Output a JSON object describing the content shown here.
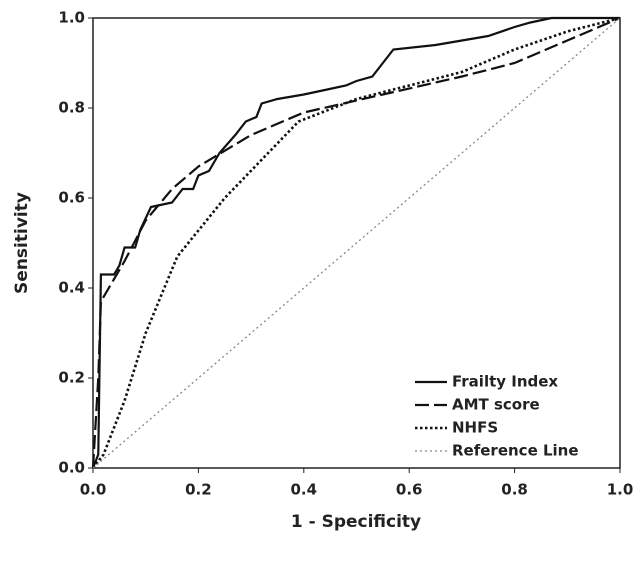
{
  "chart_data": {
    "type": "line",
    "xlabel": "1 - Specificity",
    "ylabel": "Sensitivity",
    "xlim": [
      0,
      1
    ],
    "ylim": [
      0,
      1
    ],
    "xticks": [
      {
        "value": 0,
        "label": "0.0"
      },
      0.2,
      0.4,
      0.6,
      0.8,
      {
        "value": 1,
        "label": "1.0"
      }
    ],
    "yticks": [
      {
        "value": 0,
        "label": "0.0"
      },
      0.2,
      0.4,
      0.6,
      0.8,
      {
        "value": 1,
        "label": "1.0"
      }
    ],
    "legend": "lower right",
    "series": [
      {
        "name": "Frailty Index",
        "color": "#111111",
        "style": "solid",
        "x": [
          0,
          0.01,
          0.015,
          0.04,
          0.05,
          0.06,
          0.08,
          0.09,
          0.11,
          0.15,
          0.17,
          0.19,
          0.2,
          0.22,
          0.24,
          0.27,
          0.29,
          0.31,
          0.32,
          0.35,
          0.4,
          0.44,
          0.48,
          0.5,
          0.53,
          0.55,
          0.57,
          0.65,
          0.75,
          0.8,
          0.83,
          0.87,
          1
        ],
        "values": [
          0,
          0.03,
          0.43,
          0.43,
          0.45,
          0.49,
          0.49,
          0.53,
          0.58,
          0.59,
          0.62,
          0.62,
          0.65,
          0.66,
          0.7,
          0.74,
          0.77,
          0.78,
          0.81,
          0.82,
          0.83,
          0.84,
          0.85,
          0.86,
          0.87,
          0.9,
          0.93,
          0.94,
          0.96,
          0.98,
          0.99,
          1,
          1
        ]
      },
      {
        "name": "AMT score",
        "color": "#111111",
        "style": "dashed",
        "x": [
          0,
          0.01,
          0.015,
          0.03,
          0.06,
          0.1,
          0.15,
          0.2,
          0.3,
          0.4,
          0.55,
          0.7,
          0.8,
          0.9,
          1
        ],
        "values": [
          0,
          0.2,
          0.37,
          0.4,
          0.46,
          0.55,
          0.62,
          0.67,
          0.74,
          0.79,
          0.83,
          0.87,
          0.9,
          0.95,
          1
        ]
      },
      {
        "name": "NHFS",
        "color": "#111111",
        "style": "dotted",
        "x": [
          0,
          0.02,
          0.06,
          0.1,
          0.16,
          0.25,
          0.39,
          0.5,
          0.6,
          0.7,
          0.8,
          0.9,
          1
        ],
        "values": [
          0,
          0.03,
          0.15,
          0.3,
          0.47,
          0.6,
          0.77,
          0.82,
          0.85,
          0.88,
          0.93,
          0.97,
          1
        ]
      },
      {
        "name": "Reference Line",
        "color": "#888888",
        "style": "fine-dotted",
        "x": [
          0,
          1
        ],
        "values": [
          0,
          1
        ]
      }
    ]
  }
}
